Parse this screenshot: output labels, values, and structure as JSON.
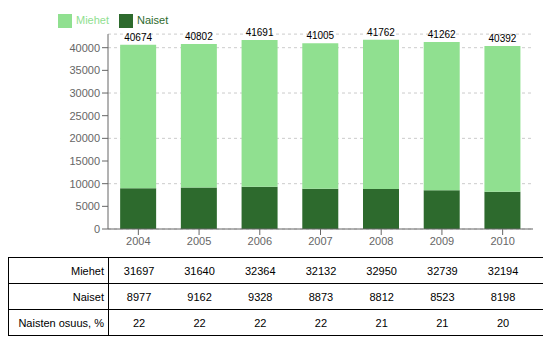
{
  "chart_data": {
    "type": "bar",
    "stacked": true,
    "grid": true,
    "legend": "upper left",
    "categories": [
      "2004",
      "2005",
      "2006",
      "2007",
      "2008",
      "2009",
      "2010"
    ],
    "series": [
      {
        "name": "Naiset",
        "color": "#2d6a2d",
        "values": [
          8977,
          9162,
          9328,
          8873,
          8812,
          8523,
          8198
        ]
      },
      {
        "name": "Miehet",
        "color": "#90e090",
        "values": [
          31697,
          31640,
          32364,
          32132,
          32950,
          32739,
          32194
        ]
      }
    ],
    "totals": [
      40674,
      40802,
      41691,
      41005,
      41762,
      41262,
      40392
    ],
    "ylim": [
      0,
      43000
    ],
    "yticks": [
      0,
      5000,
      10000,
      15000,
      20000,
      25000,
      30000,
      35000,
      40000
    ],
    "table": {
      "rows": [
        {
          "label": "Miehet",
          "values": [
            31697,
            31640,
            32364,
            32132,
            32950,
            32739,
            32194
          ]
        },
        {
          "label": "Naiset",
          "values": [
            8977,
            9162,
            9328,
            8873,
            8812,
            8523,
            8198
          ]
        },
        {
          "label": "Naisten osuus, %",
          "values": [
            22,
            22,
            22,
            22,
            21,
            21,
            20
          ]
        }
      ]
    }
  }
}
